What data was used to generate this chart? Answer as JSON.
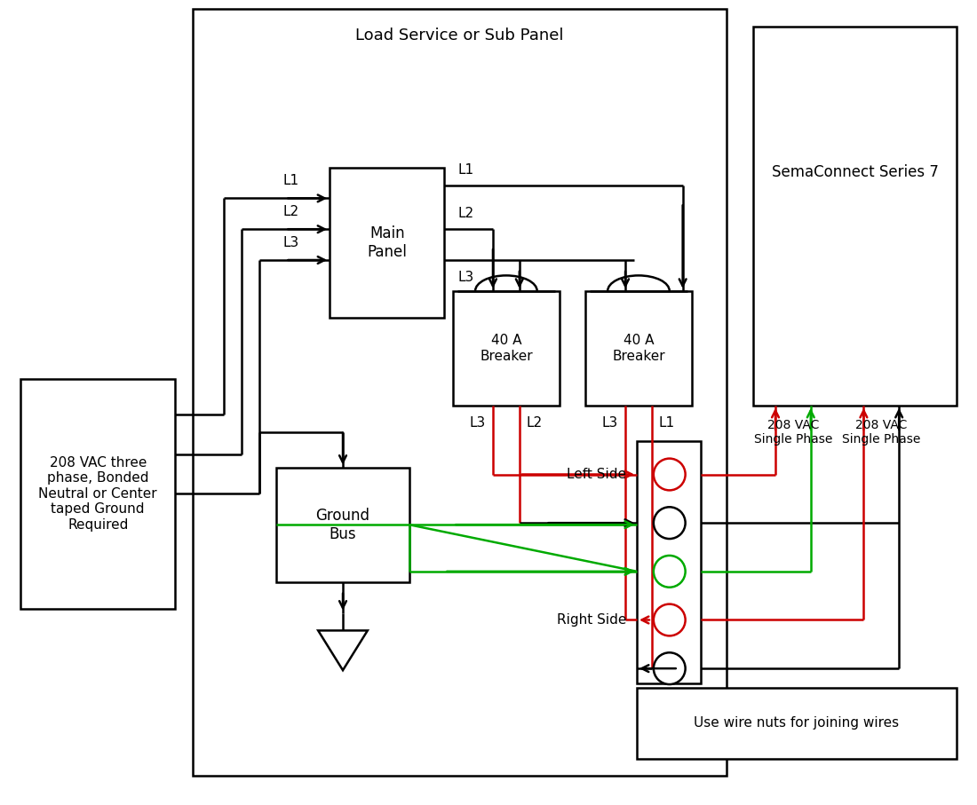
{
  "bg_color": "#ffffff",
  "line_color": "#000000",
  "red_color": "#cc0000",
  "green_color": "#00aa00",
  "title": "Load Service or Sub Panel",
  "sema_title": "SemaConnect Series 7",
  "source_label": "208 VAC three\nphase, Bonded\nNeutral or Center\ntaped Ground\nRequired",
  "ground_label": "Ground\nBus",
  "main_panel_label": "Main\nPanel",
  "breaker1_label": "40 A\nBreaker",
  "breaker2_label": "40 A\nBreaker",
  "left_side_label": "Left Side",
  "right_side_label": "Right Side",
  "phase_label1": "208 VAC\nSingle Phase",
  "phase_label2": "208 VAC\nSingle Phase",
  "wire_note": "Use wire nuts for joining wires",
  "fig_w": 11.0,
  "fig_h": 9.07,
  "dpi": 100
}
